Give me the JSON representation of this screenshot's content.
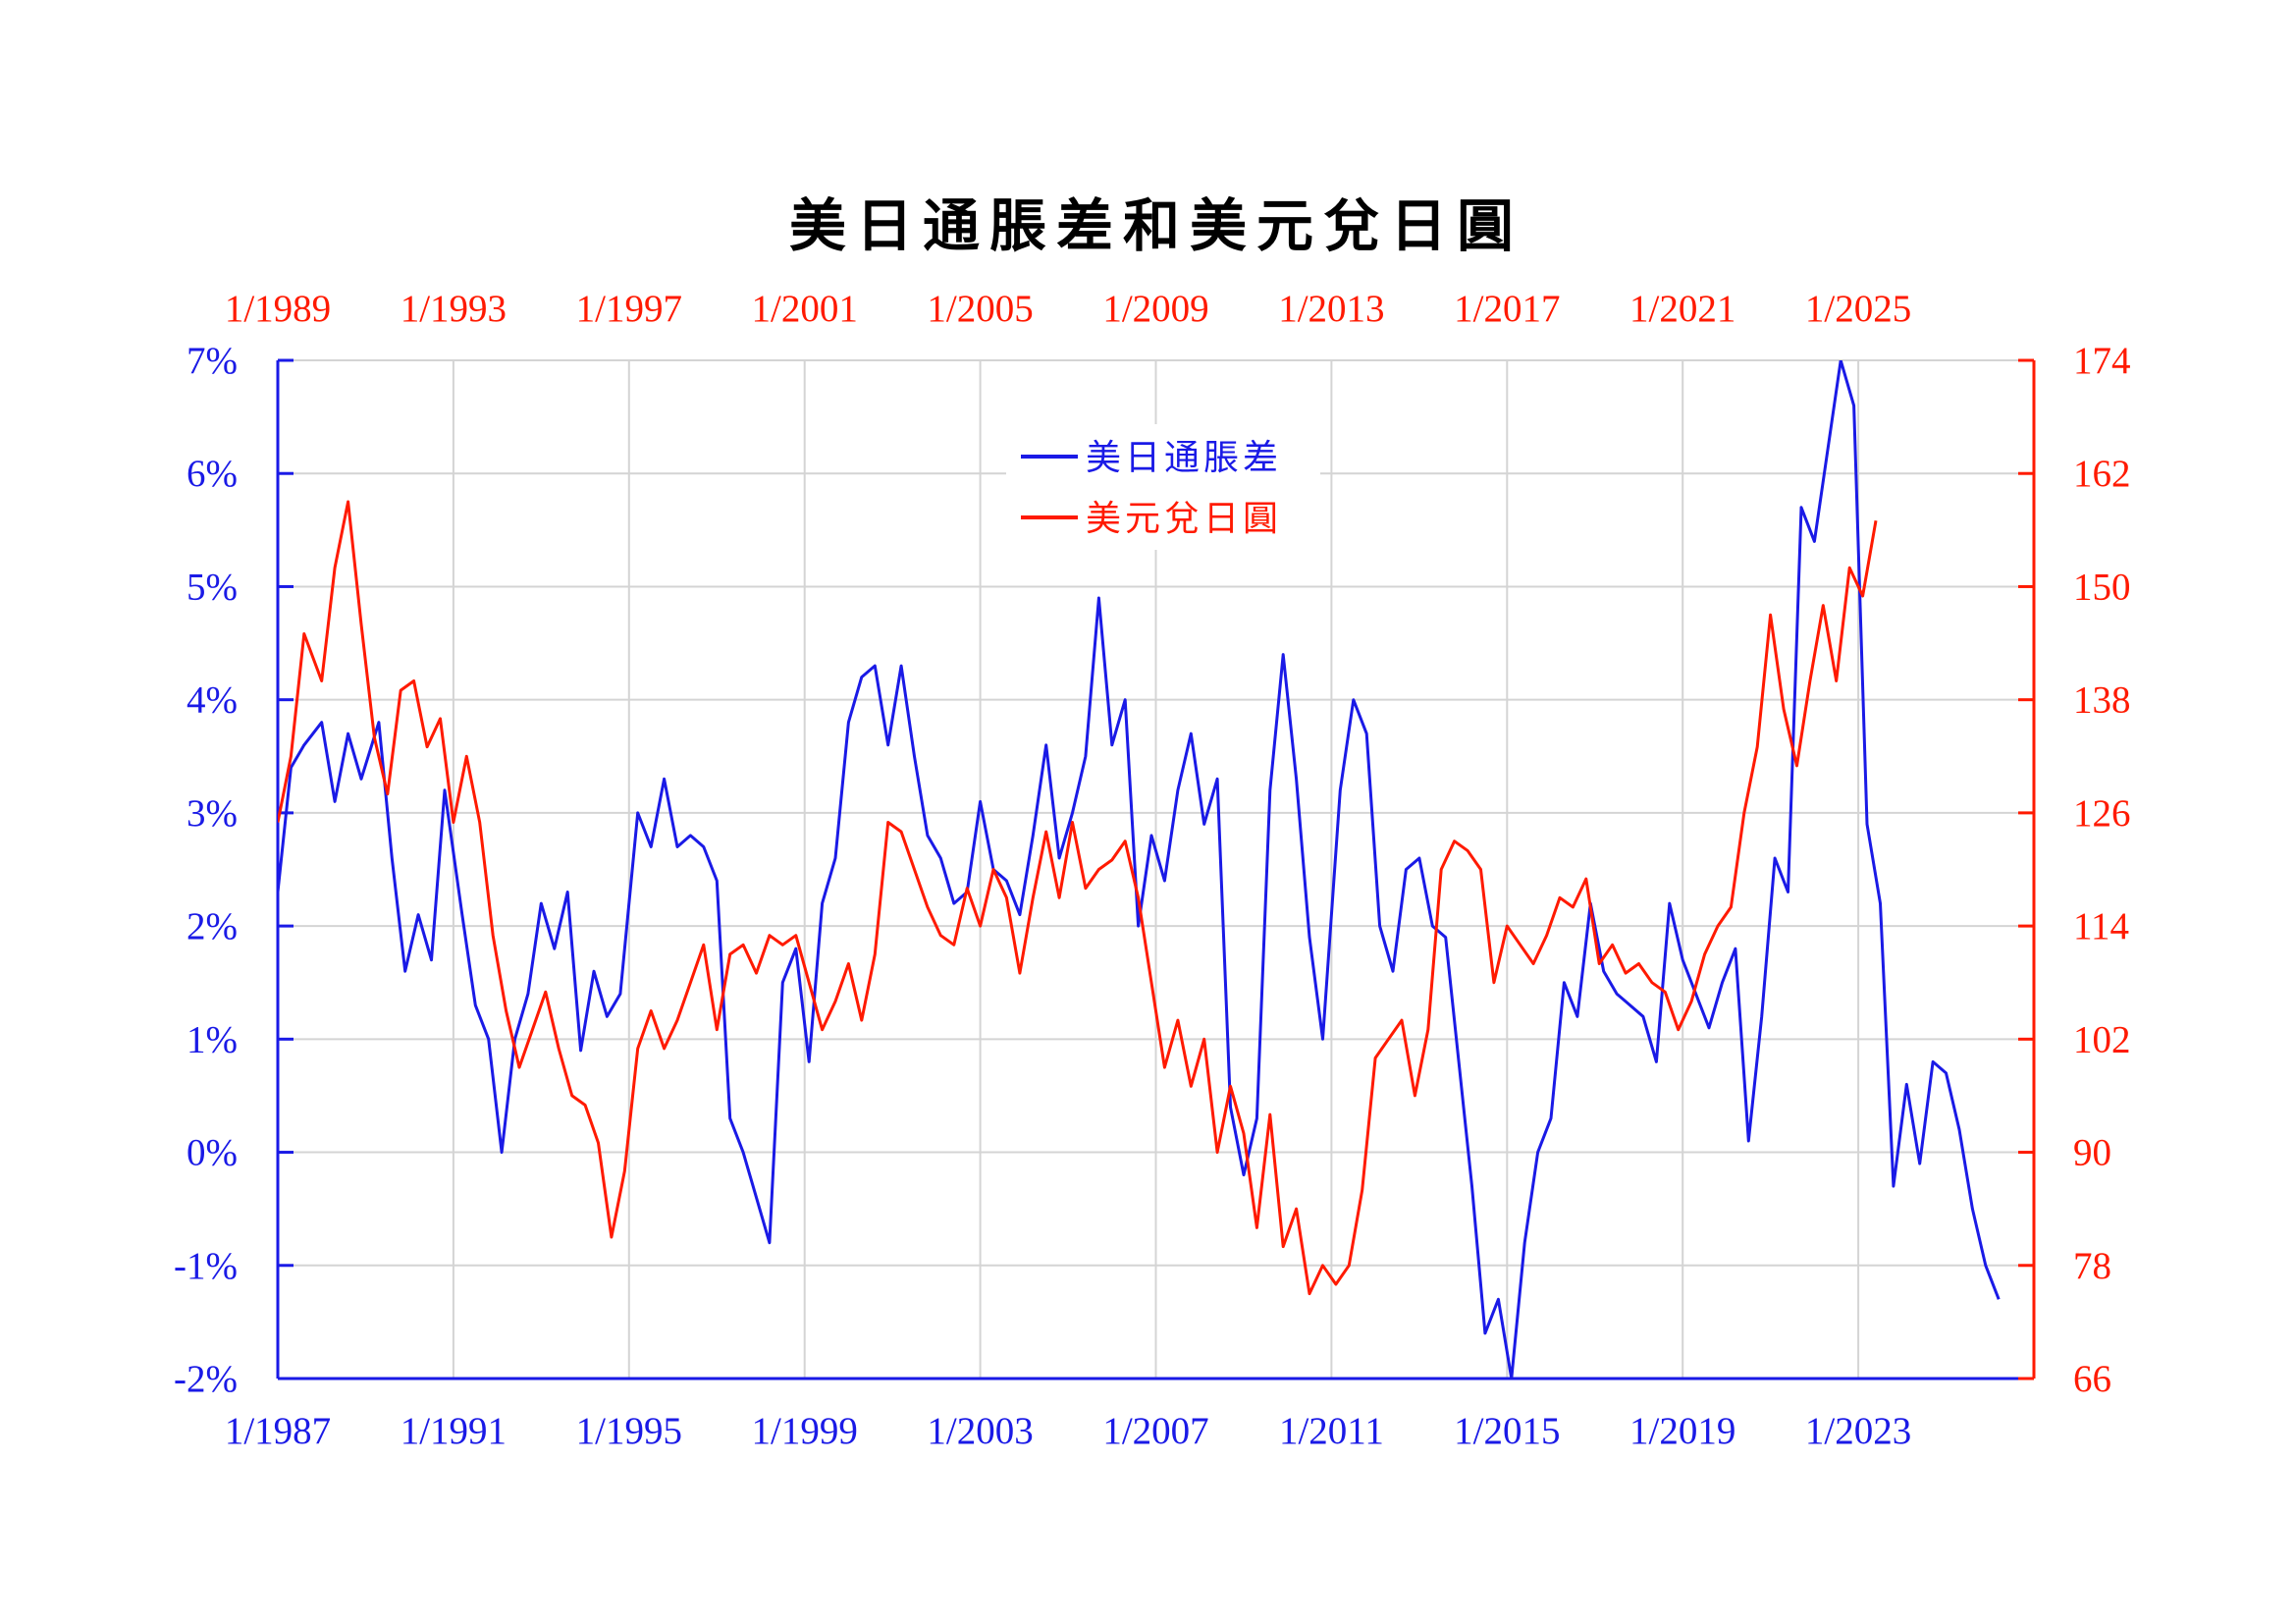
{
  "colors": {
    "blue": "#1a1ae6",
    "red": "#ff1a00",
    "grid": "#d4d4d4"
  },
  "chart_data": {
    "type": "line",
    "title": "美日通脹差和美元兌日圓",
    "grid": true,
    "legend_position": "top-center",
    "x_bottom": {
      "ticks": [
        "1/1987",
        "1/1991",
        "1/1995",
        "1/1999",
        "1/2003",
        "1/2007",
        "1/2011",
        "1/2015",
        "1/2019",
        "1/2023"
      ],
      "range": [
        1987.0,
        2027.0
      ]
    },
    "x_top": {
      "ticks": [
        "1/1989",
        "1/1993",
        "1/1997",
        "1/2001",
        "1/2005",
        "1/2009",
        "1/2013",
        "1/2017",
        "1/2021",
        "1/2025"
      ],
      "range": [
        1989.0,
        2029.0
      ]
    },
    "y_left": {
      "ticks": [
        "7%",
        "6%",
        "5%",
        "4%",
        "3%",
        "2%",
        "1%",
        "0%",
        "-1%",
        "-2%"
      ],
      "range": [
        -2,
        7
      ]
    },
    "y_right": {
      "ticks": [
        "174",
        "162",
        "150",
        "138",
        "126",
        "114",
        "102",
        "90",
        "78",
        "66"
      ],
      "range": [
        66,
        174
      ]
    },
    "series": [
      {
        "name": "美日通脹差",
        "color": "#1a1ae6",
        "axis": "bottom-left",
        "unit": "%",
        "x": [
          1987.0,
          1987.3,
          1987.6,
          1988.0,
          1988.3,
          1988.6,
          1988.9,
          1989.3,
          1989.6,
          1989.9,
          1990.2,
          1990.5,
          1990.8,
          1991.2,
          1991.5,
          1991.8,
          1992.1,
          1992.4,
          1992.7,
          1993.0,
          1993.3,
          1993.6,
          1993.9,
          1994.2,
          1994.5,
          1994.8,
          1995.2,
          1995.5,
          1995.8,
          1996.1,
          1996.4,
          1996.7,
          1997.0,
          1997.3,
          1997.6,
          1997.9,
          1998.2,
          1998.5,
          1998.8,
          1999.1,
          1999.4,
          1999.7,
          2000.0,
          2000.3,
          2000.6,
          2000.9,
          2001.2,
          2001.5,
          2001.8,
          2002.1,
          2002.4,
          2002.7,
          2003.0,
          2003.3,
          2003.6,
          2003.9,
          2004.2,
          2004.5,
          2004.8,
          2005.1,
          2005.4,
          2005.7,
          2006.0,
          2006.3,
          2006.6,
          2006.9,
          2007.2,
          2007.5,
          2007.8,
          2008.1,
          2008.4,
          2008.7,
          2009.0,
          2009.3,
          2009.6,
          2009.9,
          2010.2,
          2010.5,
          2010.8,
          2011.2,
          2011.5,
          2011.8,
          2012.1,
          2012.4,
          2012.7,
          2013.0,
          2013.3,
          2013.6,
          2013.9,
          2014.2,
          2014.5,
          2014.8,
          2015.1,
          2015.4,
          2015.7,
          2016.0,
          2016.3,
          2016.6,
          2016.9,
          2017.2,
          2017.5,
          2017.8,
          2018.1,
          2018.4,
          2018.7,
          2019.0,
          2019.3,
          2019.6,
          2019.9,
          2020.2,
          2020.5,
          2020.8,
          2021.1,
          2021.4,
          2021.7,
          2022.0,
          2022.3,
          2022.6,
          2022.9,
          2023.2,
          2023.5,
          2023.8,
          2024.1,
          2024.4,
          2024.7,
          2025.0,
          2025.3,
          2025.6,
          2025.9,
          2026.2
        ],
        "values": [
          2.3,
          3.4,
          3.6,
          3.8,
          3.1,
          3.7,
          3.3,
          3.8,
          2.6,
          1.6,
          2.1,
          1.7,
          3.2,
          2.1,
          1.3,
          1.0,
          0.0,
          1.0,
          1.4,
          2.2,
          1.8,
          2.3,
          0.9,
          1.6,
          1.2,
          1.4,
          3.0,
          2.7,
          3.3,
          2.7,
          2.8,
          2.7,
          2.4,
          0.3,
          0.0,
          -0.4,
          -0.8,
          1.5,
          1.8,
          0.8,
          2.2,
          2.6,
          3.8,
          4.2,
          4.3,
          3.6,
          4.3,
          3.5,
          2.8,
          2.6,
          2.2,
          2.3,
          3.1,
          2.5,
          2.4,
          2.1,
          2.8,
          3.6,
          2.6,
          3.0,
          3.5,
          4.9,
          3.6,
          4.0,
          2.0,
          2.8,
          2.4,
          3.2,
          3.7,
          2.9,
          3.3,
          0.4,
          -0.2,
          0.3,
          3.2,
          4.4,
          3.3,
          1.9,
          1.0,
          3.2,
          4.0,
          3.7,
          2.0,
          1.6,
          2.5,
          2.6,
          2.0,
          1.9,
          0.8,
          -0.3,
          -1.6,
          -1.3,
          -2.0,
          -0.8,
          0.0,
          0.3,
          1.5,
          1.2,
          2.2,
          1.6,
          1.4,
          1.3,
          1.2,
          0.8,
          2.2,
          1.7,
          1.4,
          1.1,
          1.5,
          1.8,
          0.1,
          1.2,
          2.6,
          2.3,
          5.7,
          5.4,
          6.2,
          7.0,
          6.6,
          2.9,
          2.2,
          -0.3,
          0.6,
          -0.1,
          0.8,
          0.7,
          0.2,
          -0.5,
          -1.0,
          -1.3
        ]
      },
      {
        "name": "美元兌日圓",
        "color": "#ff1a00",
        "axis": "top-right",
        "unit": "",
        "x": [
          1989.0,
          1989.3,
          1989.6,
          1990.0,
          1990.3,
          1990.6,
          1990.9,
          1991.2,
          1991.5,
          1991.8,
          1992.1,
          1992.4,
          1992.7,
          1993.0,
          1993.3,
          1993.6,
          1993.9,
          1994.2,
          1994.5,
          1994.8,
          1995.1,
          1995.4,
          1995.7,
          1996.0,
          1996.3,
          1996.6,
          1996.9,
          1997.2,
          1997.5,
          1997.8,
          1998.1,
          1998.4,
          1998.7,
          1999.0,
          1999.3,
          1999.6,
          1999.9,
          2000.2,
          2000.5,
          2000.8,
          2001.1,
          2001.4,
          2001.7,
          2002.0,
          2002.3,
          2002.6,
          2002.9,
          2003.2,
          2003.5,
          2003.8,
          2004.1,
          2004.4,
          2004.7,
          2005.0,
          2005.3,
          2005.6,
          2005.9,
          2006.2,
          2006.5,
          2006.8,
          2007.1,
          2007.4,
          2007.7,
          2008.0,
          2008.3,
          2008.6,
          2008.9,
          2009.2,
          2009.5,
          2009.8,
          2010.1,
          2010.4,
          2010.7,
          2011.0,
          2011.3,
          2011.6,
          2011.9,
          2012.2,
          2012.5,
          2012.8,
          2013.1,
          2013.4,
          2013.7,
          2014.0,
          2014.3,
          2014.6,
          2014.9,
          2015.2,
          2015.5,
          2015.8,
          2016.1,
          2016.4,
          2016.7,
          2017.0,
          2017.3,
          2017.6,
          2017.9,
          2018.2,
          2018.5,
          2018.8,
          2019.1,
          2019.4,
          2019.7,
          2020.0,
          2020.3,
          2020.6,
          2020.9,
          2021.2,
          2021.5,
          2021.8,
          2022.1,
          2022.4,
          2022.7,
          2023.0,
          2023.3,
          2023.6,
          2023.9,
          2024.2,
          2024.5,
          2024.8,
          2025.1,
          2025.4
        ],
        "values": [
          125,
          132,
          145,
          140,
          152,
          159,
          146,
          134,
          128,
          139,
          140,
          133,
          136,
          125,
          132,
          125,
          113,
          105,
          99,
          103,
          107,
          101,
          96,
          95,
          91,
          81,
          88,
          101,
          105,
          101,
          104,
          108,
          112,
          103,
          111,
          112,
          109,
          113,
          112,
          113,
          108,
          103,
          106,
          110,
          104,
          111,
          125,
          124,
          120,
          116,
          113,
          112,
          118,
          114,
          120,
          117,
          109,
          117,
          124,
          117,
          125,
          118,
          120,
          121,
          123,
          117,
          108,
          99,
          104,
          97,
          102,
          90,
          97,
          92,
          82,
          94,
          80,
          84,
          75,
          78,
          76,
          78,
          86,
          100,
          102,
          104,
          96,
          103,
          120,
          123,
          122,
          120,
          108,
          114,
          112,
          110,
          113,
          117,
          116,
          119,
          110,
          112,
          109,
          110,
          108,
          107,
          103,
          106,
          111,
          114,
          116,
          126,
          133,
          147,
          137,
          131,
          140,
          148,
          140,
          152,
          149,
          157
        ]
      }
    ]
  },
  "legend": [
    {
      "label": "美日通脹差",
      "color": "#1a1ae6"
    },
    {
      "label": "美元兌日圓",
      "color": "#ff1a00"
    }
  ]
}
